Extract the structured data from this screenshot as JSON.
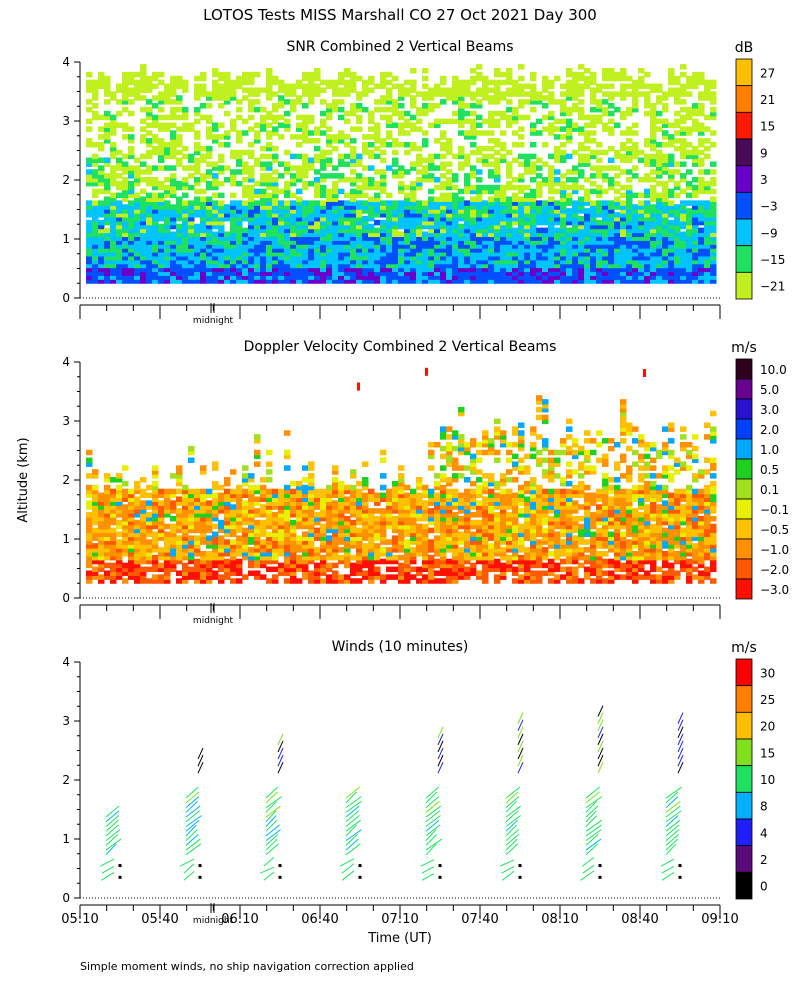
{
  "figure": {
    "title": "LOTOS Tests MISS Marshall CO  27 Oct 2021 Day 300",
    "y_axis_label": "Altitude (km)",
    "x_axis_label": "Time (UT)",
    "footnote": "Simple moment winds, no ship navigation correction applied",
    "midnight_marker": "midnight"
  },
  "chart_data": [
    {
      "type": "heatmap",
      "title": "SNR Combined 2 Vertical Beams",
      "ylabel": "Altitude (km)",
      "ylim": [
        0,
        4
      ],
      "yticks": [
        "0",
        "1",
        "2",
        "3",
        "4"
      ],
      "colorbar": {
        "unit": "dB",
        "labels": [
          "27",
          "21",
          "15",
          "9",
          "3",
          "−3",
          "−9",
          "−15",
          "−21"
        ],
        "colors": [
          "#ffbf00",
          "#ff7f00",
          "#ff1a00",
          "#4a0a5a",
          "#6a00c8",
          "#0050ff",
          "#00c4ff",
          "#20e060",
          "#c0f020"
        ]
      },
      "altitude_structure": [
        {
          "from_km": 0.25,
          "to_km": 1.0,
          "dominant": "−9 to 3 dB"
        },
        {
          "from_km": 1.0,
          "to_km": 1.6,
          "dominant": "−15 to −9 dB"
        },
        {
          "from_km": 1.6,
          "to_km": 3.9,
          "dominant": "−21 dB, sparse"
        }
      ]
    },
    {
      "type": "heatmap",
      "title": "Doppler Velocity Combined 2 Vertical Beams",
      "ylabel": "Altitude (km)",
      "ylim": [
        0,
        4
      ],
      "yticks": [
        "0",
        "1",
        "2",
        "3",
        "4"
      ],
      "colorbar": {
        "unit": "m/s",
        "labels": [
          "10.0",
          "5.0",
          "3.0",
          "2.0",
          "1.0",
          "0.5",
          "0.1",
          "−0.1",
          "−0.5",
          "−1.0",
          "−2.0",
          "−3.0"
        ],
        "colors": [
          "#30001f",
          "#6a0090",
          "#2a10d0",
          "#0040ff",
          "#00a8ff",
          "#20d020",
          "#a0e020",
          "#e8f000",
          "#ffc000",
          "#ff9000",
          "#ff5a00",
          "#ff1000"
        ]
      },
      "altitude_structure": [
        {
          "from_km": 0.25,
          "to_km": 0.6,
          "dominant": "−3.0 to −2.0 m/s"
        },
        {
          "from_km": 0.6,
          "to_km": 1.8,
          "dominant": "−1.0 to −0.5 m/s"
        },
        {
          "from_km": 1.8,
          "to_km": 3.1,
          "dominant": "−0.5 to 1.0 m/s, patchy"
        }
      ]
    },
    {
      "type": "scatter",
      "title": "Winds (10 minutes)",
      "xlabel": "Time (UT)",
      "ylabel": "Altitude (km)",
      "ylim": [
        0,
        4
      ],
      "yticks": [
        "0",
        "1",
        "2",
        "3",
        "4"
      ],
      "xticks": [
        "05:10",
        "05:40",
        "06:10",
        "06:40",
        "07:10",
        "07:40",
        "08:10",
        "08:40",
        "09:10"
      ],
      "colorbar": {
        "unit": "m/s",
        "labels": [
          "30",
          "25",
          "20",
          "15",
          "10",
          "8",
          "4",
          "2",
          "0"
        ],
        "colors": [
          "#ff0000",
          "#ff7f00",
          "#ffbf00",
          "#80e020",
          "#20e060",
          "#00b0ff",
          "#2020ff",
          "#5a0a7a",
          "#000000"
        ]
      },
      "profile_times": [
        "05:25",
        "05:55",
        "06:25",
        "06:55",
        "07:25",
        "07:55",
        "08:25",
        "08:55"
      ],
      "profile_top_km": [
        1.5,
        2.45,
        2.75,
        1.8,
        2.85,
        3.1,
        3.25,
        3.05
      ]
    }
  ]
}
